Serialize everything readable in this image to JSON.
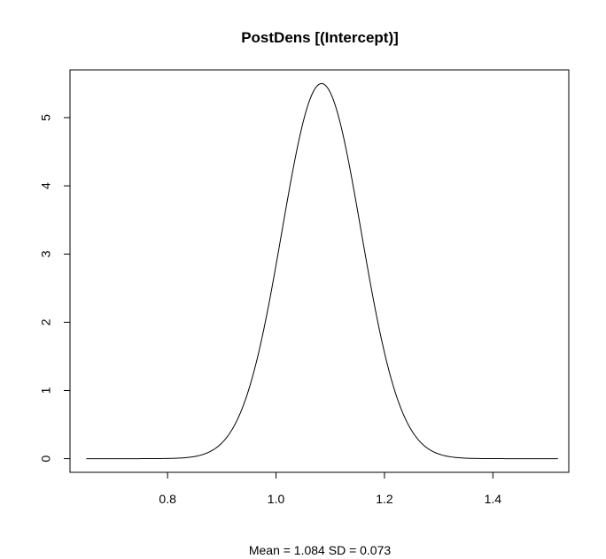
{
  "chart_data": {
    "type": "line",
    "title": "PostDens [(Intercept)]",
    "xlabel": "Mean = 1.084 SD = 0.073",
    "ylabel": "",
    "xlim": [
      0.62,
      1.54
    ],
    "ylim": [
      -0.2,
      5.7
    ],
    "x_ticks": [
      0.8,
      1.0,
      1.2,
      1.4
    ],
    "x_tick_labels": [
      "0.8",
      "1.0",
      "1.2",
      "1.4"
    ],
    "y_ticks": [
      0,
      1,
      2,
      3,
      4,
      5
    ],
    "y_tick_labels": [
      "0",
      "1",
      "2",
      "3",
      "4",
      "5"
    ],
    "grid": false,
    "series": [
      {
        "distribution": "normal",
        "mean": 1.084,
        "sd": 0.073,
        "x_range": [
          0.65,
          1.52
        ],
        "peak_density": 5.5,
        "color": "#000000"
      }
    ]
  }
}
